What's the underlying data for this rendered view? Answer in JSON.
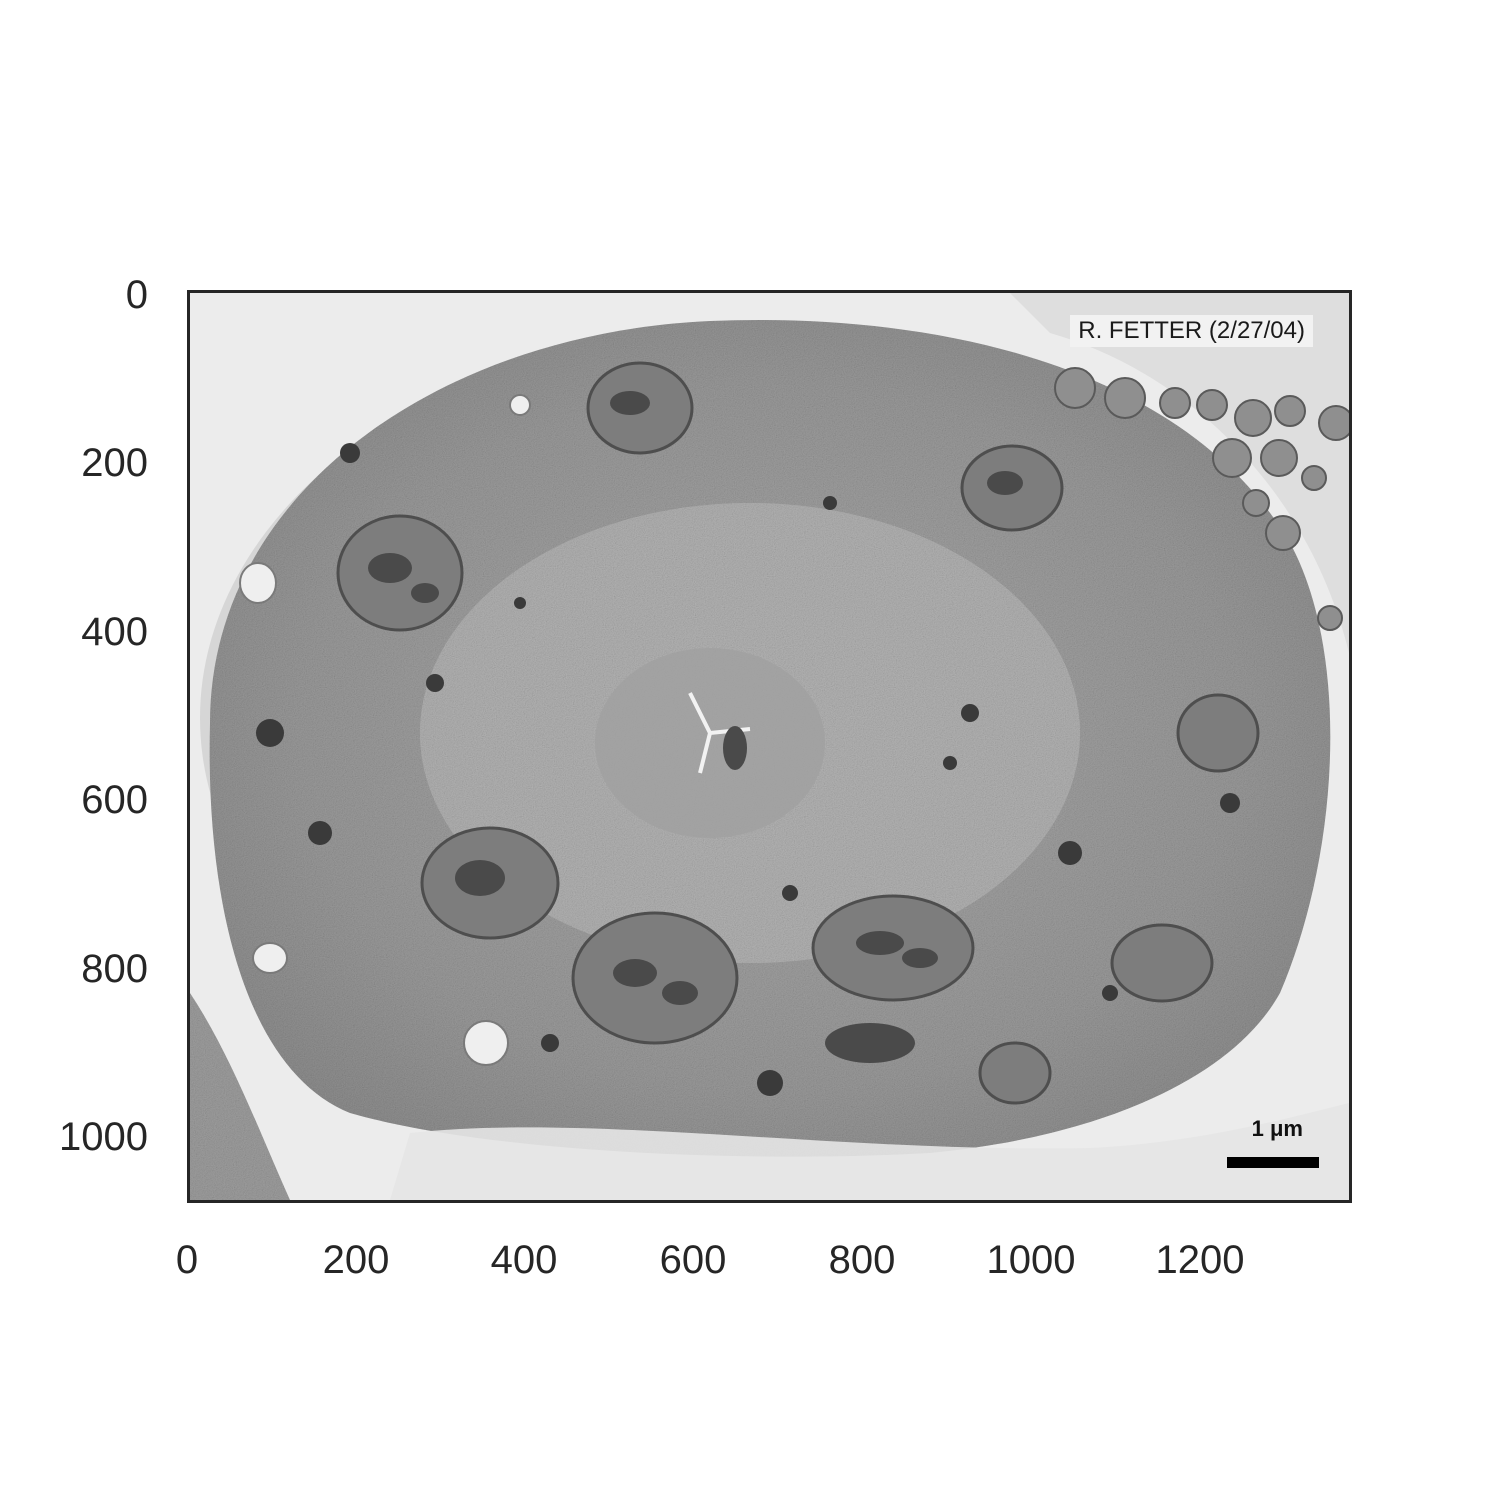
{
  "image": {
    "description_hidden": "",
    "credit": "R. FETTER (2/27/04)",
    "scale_bar_label": "1 μm"
  },
  "axes": {
    "x_ticks": [
      "0",
      "200",
      "400",
      "600",
      "800",
      "1000",
      "1200"
    ],
    "y_ticks": [
      "0",
      "200",
      "400",
      "600",
      "800",
      "1000"
    ],
    "xlim": [
      0,
      1376
    ],
    "ylim": [
      1078,
      0
    ],
    "grid": false
  },
  "colors": {
    "frame": "#262626",
    "tick_text": "#262626"
  }
}
